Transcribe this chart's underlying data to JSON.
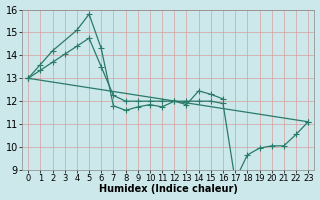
{
  "xlabel": "Humidex (Indice chaleur)",
  "bg_color": "#cce8ea",
  "grid_color": "#b0d0d0",
  "line_color": "#2a7a6a",
  "xlim": [
    -0.5,
    23.5
  ],
  "ylim": [
    9,
    16
  ],
  "xticks": [
    0,
    1,
    2,
    3,
    4,
    5,
    6,
    7,
    8,
    9,
    10,
    11,
    12,
    13,
    14,
    15,
    16,
    17,
    18,
    19,
    20,
    21,
    22,
    23
  ],
  "yticks": [
    9,
    10,
    11,
    12,
    13,
    14,
    15,
    16
  ],
  "series1_x": [
    0,
    1,
    2,
    4,
    5,
    6,
    7,
    8,
    9,
    10,
    11,
    12,
    13,
    14,
    15,
    16
  ],
  "series1_y": [
    13.0,
    13.6,
    14.2,
    15.1,
    15.8,
    14.3,
    11.8,
    11.6,
    11.75,
    11.85,
    11.75,
    12.0,
    11.85,
    12.45,
    12.3,
    12.1
  ],
  "series2_x": [
    0,
    1,
    2,
    3,
    4,
    5,
    6,
    7,
    8,
    9,
    10,
    11,
    12,
    13,
    14,
    15,
    16,
    17,
    18,
    19,
    20,
    21,
    22,
    23
  ],
  "series2_y": [
    13.0,
    13.35,
    13.7,
    14.05,
    14.4,
    14.75,
    13.5,
    12.25,
    12.0,
    12.0,
    12.0,
    12.0,
    12.0,
    12.0,
    12.0,
    12.0,
    11.9,
    8.55,
    9.65,
    9.95,
    10.05,
    10.05,
    10.55,
    11.1
  ],
  "series3_x": [
    0,
    23
  ],
  "series3_y": [
    13.0,
    11.1
  ],
  "line_width": 0.9,
  "marker_size": 2.5,
  "tick_fontsize": 6,
  "xlabel_fontsize": 7
}
